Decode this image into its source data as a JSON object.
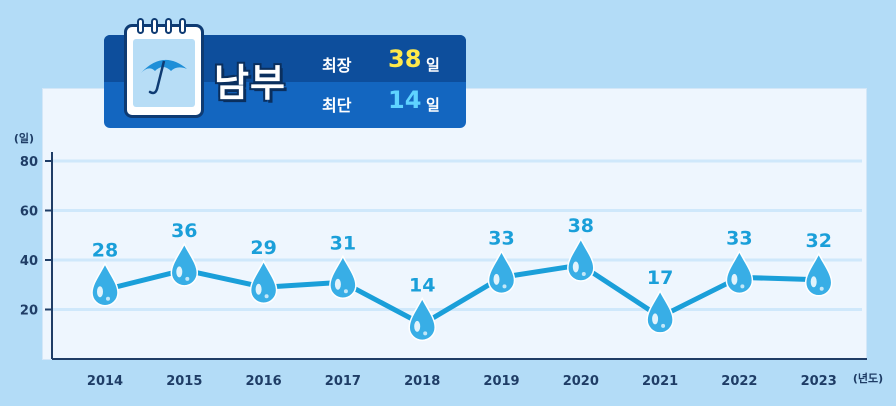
{
  "badge": {
    "region": "남부",
    "longest_label": "최장",
    "longest_value": "38",
    "shortest_label": "최단",
    "shortest_value": "14",
    "unit": "일",
    "icon": "umbrella-calendar-icon"
  },
  "colors": {
    "background": "#b3dcf7",
    "line": "#1a9fd9",
    "drop": "#38aee6",
    "label": "#1a9fd9",
    "axis": "#1f3d66",
    "badge_dark": "#0d4e9c",
    "badge_light": "#1366c0",
    "longest_value": "#ffe94a",
    "shortest_value": "#5fd3ff"
  },
  "chart_data": {
    "type": "line",
    "categories": [
      "2014",
      "2015",
      "2016",
      "2017",
      "2018",
      "2019",
      "2020",
      "2021",
      "2022",
      "2023"
    ],
    "values": [
      28,
      36,
      29,
      31,
      14,
      33,
      38,
      17,
      33,
      32
    ],
    "y_unit_label": "(일)",
    "x_unit_label": "(년도)",
    "yticks": [
      20,
      40,
      60,
      80
    ],
    "ylim": [
      0,
      80
    ],
    "grid": true,
    "marker": "water-drop"
  }
}
